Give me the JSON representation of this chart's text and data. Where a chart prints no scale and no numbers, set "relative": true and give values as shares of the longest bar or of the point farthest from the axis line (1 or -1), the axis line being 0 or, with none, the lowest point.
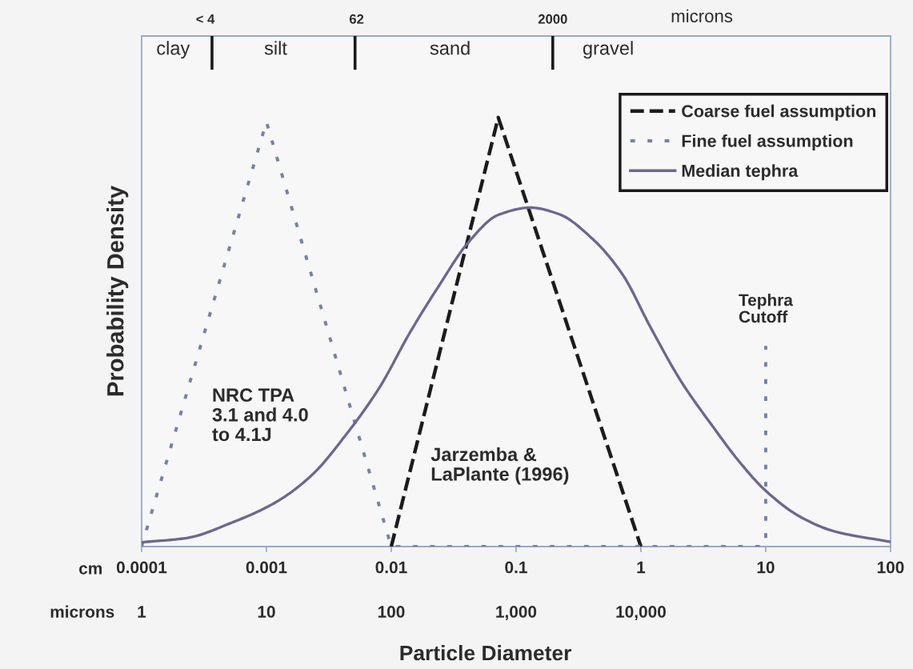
{
  "chart_data": {
    "type": "line",
    "xlabel": "Particle Diameter",
    "ylabel": "Probability Density",
    "log": "x",
    "relative": true,
    "xlim": [
      0.0001,
      100
    ],
    "xticks": [
      0.0001,
      0.001,
      0.01,
      0.1,
      1,
      10,
      100
    ],
    "series": [
      {
        "name": "Coarse fuel assumption",
        "color": "#1c1c1c",
        "line_style": "dashed",
        "x": [
          0.01,
          0.072,
          1
        ],
        "values": [
          0,
          1,
          0
        ]
      },
      {
        "name": "Fine fuel assumption",
        "color": "#7480ad",
        "line_style": "dotted",
        "x": [
          0.0001,
          0.001,
          0.01,
          10
        ],
        "values": [
          0,
          0.99,
          0,
          0
        ]
      },
      {
        "name": "Median tephra",
        "color": "#6b6791",
        "line_style": "solid",
        "x": [
          0.0001,
          0.00023,
          0.00053,
          0.0012,
          0.0023,
          0.0044,
          0.0081,
          0.014,
          0.024,
          0.042,
          0.072,
          0.13,
          0.22,
          0.41,
          0.71,
          1.2,
          2.1,
          3.7,
          6.3,
          10,
          19,
          36,
          100
        ],
        "values": [
          0.01,
          0.02,
          0.056,
          0.104,
          0.166,
          0.263,
          0.372,
          0.497,
          0.607,
          0.711,
          0.773,
          0.79,
          0.775,
          0.717,
          0.635,
          0.51,
          0.385,
          0.283,
          0.194,
          0.13,
          0.069,
          0.035,
          0.011
        ]
      }
    ],
    "ref_lines": [
      {
        "axis": "x",
        "value": 10,
        "label": "Tephra\nCutoff",
        "color": "#7480ad",
        "line_style": "dotted"
      }
    ],
    "annotations": [
      "< 4",
      "62",
      "2000",
      "microns",
      "clay",
      "silt",
      "sand",
      "gravel",
      "NRC TPA\n3.1 and 4.0\nto 4.1J",
      "Jarzemba &\nLaPlante (1996)",
      "cm",
      "microns",
      "1",
      "10",
      "100",
      "1,000",
      "10,000"
    ],
    "legend": "top right"
  }
}
